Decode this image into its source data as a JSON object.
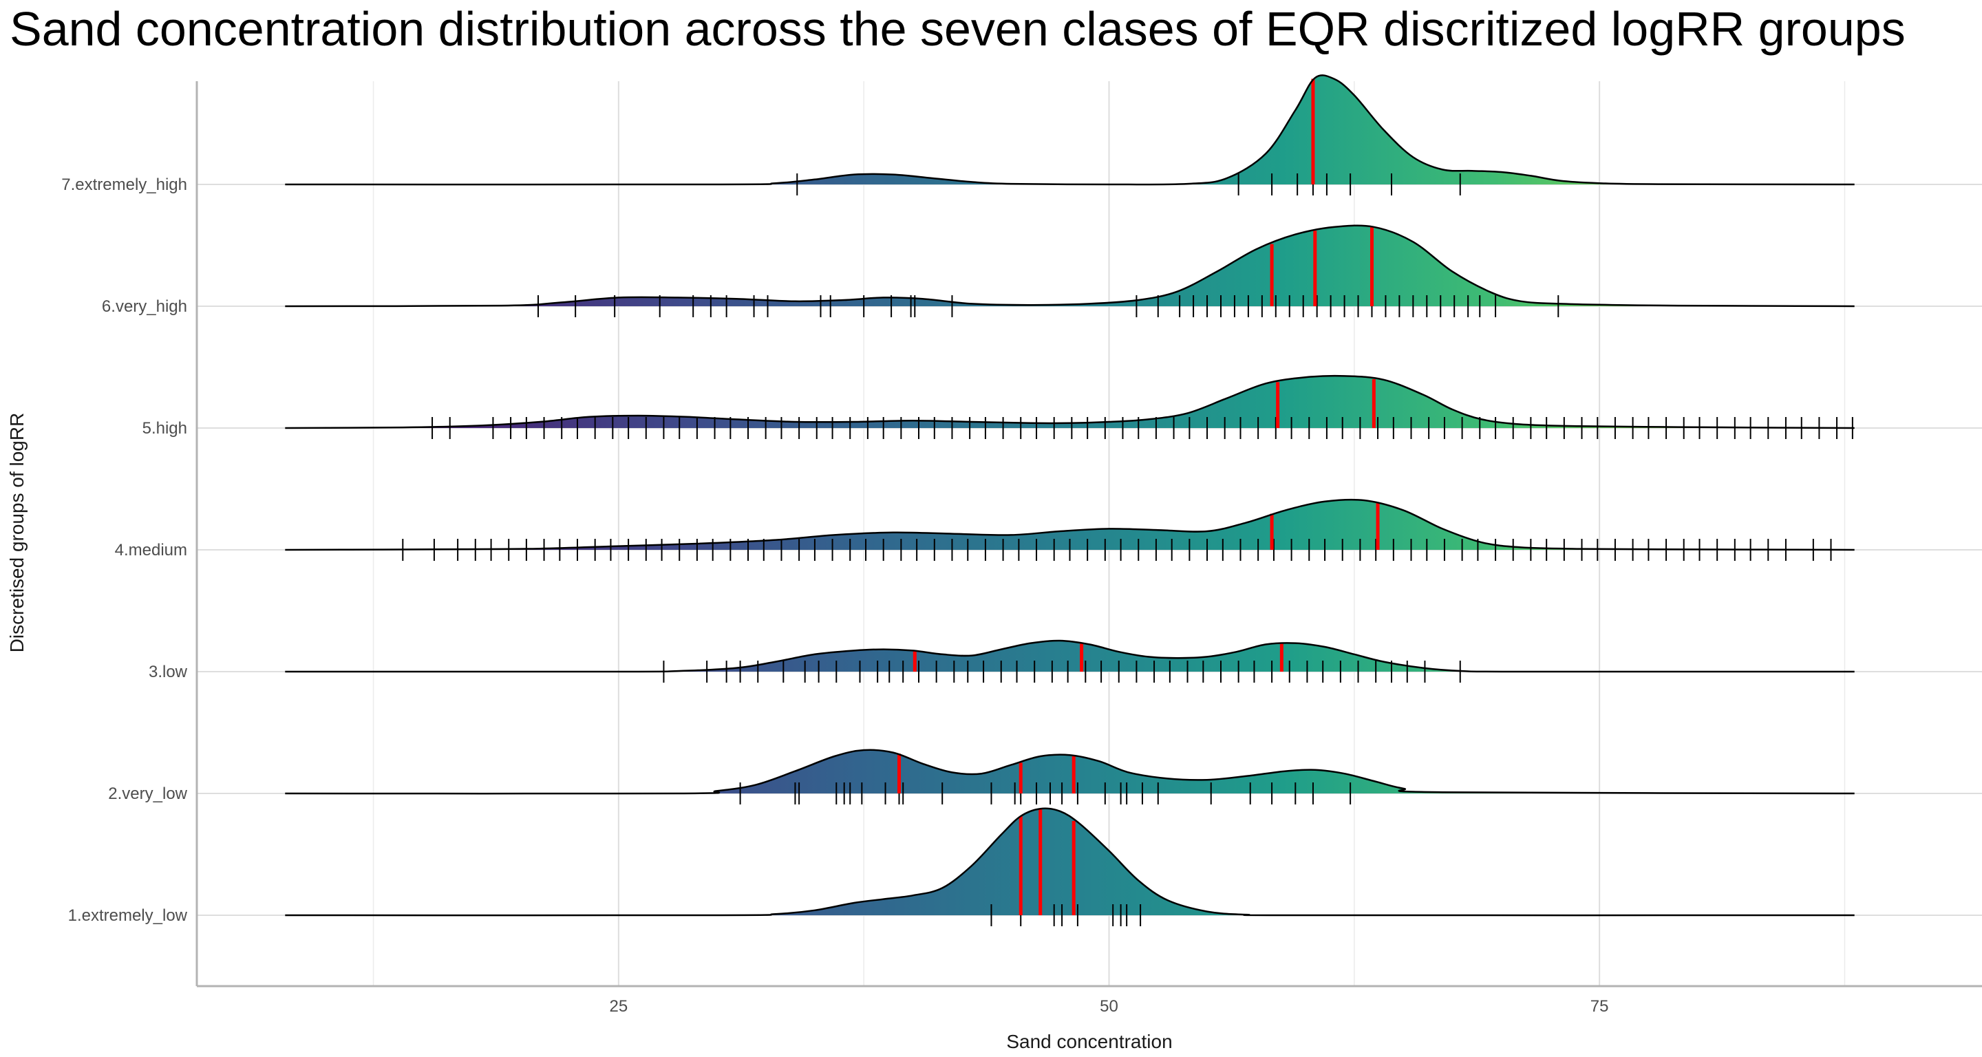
{
  "chart_data": {
    "type": "ridgeline",
    "title": "Sand concentration distribution across the seven clases of EQR discritized logRR groups",
    "xlabel": "Sand concentration",
    "ylabel": "Discretised groups of logRR",
    "xlim": [
      3.5,
      94.5
    ],
    "x_ticks": [
      25,
      50,
      75
    ],
    "x_tick_labels": [
      "25",
      "50",
      "75"
    ],
    "grid": true,
    "fill_palette": "viridis",
    "quantile_line_color": "#ff0000",
    "categories": [
      "1.extremely_low",
      "2.very_low",
      "3.low",
      "4.medium",
      "5.high",
      "6.very_high",
      "7.extremely_high"
    ],
    "series": [
      {
        "name": "1.extremely_low",
        "density_curve": {
          "x": [
            8,
            30,
            33,
            35,
            37,
            38.5,
            40,
            41.5,
            43,
            44.5,
            45.5,
            46.5,
            47.5,
            48.5,
            50,
            51.5,
            53,
            55,
            57,
            60,
            88
          ],
          "y": [
            0,
            0,
            0.01,
            0.04,
            0.1,
            0.13,
            0.16,
            0.22,
            0.4,
            0.65,
            0.8,
            0.86,
            0.84,
            0.74,
            0.52,
            0.28,
            0.12,
            0.03,
            0.005,
            0,
            0
          ]
        },
        "quantile_lines": [
          45.5,
          46.5,
          48.2
        ],
        "rug": [
          44,
          45.5,
          47.2,
          47.6,
          48.4,
          50.2,
          50.6,
          50.9,
          51.6
        ]
      },
      {
        "name": "2.very_low",
        "density_curve": {
          "x": [
            8,
            28,
            30,
            32,
            34,
            36,
            37.5,
            39,
            40.5,
            42,
            43.5,
            45,
            46.5,
            48,
            49.5,
            51,
            53,
            55,
            57,
            59,
            60.5,
            62,
            63.5,
            65,
            67,
            88
          ],
          "y": [
            0,
            0,
            0.02,
            0.07,
            0.18,
            0.3,
            0.35,
            0.33,
            0.24,
            0.17,
            0.16,
            0.23,
            0.3,
            0.31,
            0.26,
            0.17,
            0.12,
            0.11,
            0.14,
            0.18,
            0.19,
            0.16,
            0.1,
            0.04,
            0.01,
            0
          ]
        },
        "quantile_lines": [
          39.3,
          45.5,
          48.2
        ],
        "rug": [
          31.2,
          34,
          34.2,
          36.1,
          36.5,
          36.8,
          37.4,
          38.6,
          39.3,
          39.5,
          41.5,
          44,
          45.2,
          45.5,
          46.3,
          47,
          47.6,
          48.4,
          49.8,
          50.6,
          50.9,
          51.7,
          52.5,
          55.2,
          57.2,
          58.3,
          59.5,
          60.4,
          62.3
        ]
      },
      {
        "name": "3.low",
        "density_curve": {
          "x": [
            8,
            25,
            28,
            31,
            33,
            35,
            37,
            38.5,
            40,
            41.5,
            43,
            44.5,
            46,
            47.5,
            49,
            50.5,
            52,
            53.5,
            55,
            56.5,
            58,
            59.5,
            61,
            62.5,
            64,
            66,
            68,
            71,
            88
          ],
          "y": [
            0,
            0,
            0.005,
            0.03,
            0.08,
            0.14,
            0.17,
            0.18,
            0.17,
            0.14,
            0.13,
            0.18,
            0.23,
            0.25,
            0.22,
            0.16,
            0.12,
            0.11,
            0.12,
            0.16,
            0.22,
            0.23,
            0.2,
            0.14,
            0.08,
            0.03,
            0.005,
            0,
            0
          ]
        },
        "quantile_lines": [
          40.1,
          48.6,
          58.8
        ],
        "rug": [
          27.3,
          29.5,
          30.5,
          31.2,
          32.1,
          33.4,
          34.5,
          35.2,
          36.1,
          37.3,
          38.2,
          38.8,
          39.5,
          40.3,
          41.2,
          42.1,
          42.8,
          43.6,
          44.5,
          45.3,
          46.2,
          47.1,
          47.9,
          48.8,
          49.6,
          50.5,
          51.4,
          52.3,
          53.1,
          54,
          54.8,
          55.7,
          56.6,
          57.4,
          58.3,
          59.2,
          60.1,
          60.9,
          61.8,
          62.7,
          63.6,
          64.4,
          65.2,
          66.1,
          67.9
        ]
      },
      {
        "name": "4.medium",
        "density_curve": {
          "x": [
            8,
            13,
            17,
            21,
            25,
            29,
            33,
            36,
            39,
            42,
            45,
            47.5,
            50,
            52.5,
            55,
            57,
            59,
            61,
            63,
            65,
            67,
            69,
            71,
            74,
            78,
            83,
            88
          ],
          "y": [
            0,
            0.002,
            0.005,
            0.01,
            0.03,
            0.05,
            0.08,
            0.12,
            0.14,
            0.13,
            0.12,
            0.15,
            0.17,
            0.16,
            0.15,
            0.22,
            0.32,
            0.39,
            0.4,
            0.32,
            0.17,
            0.06,
            0.02,
            0.008,
            0.004,
            0.002,
            0
          ]
        },
        "quantile_lines": [
          58.3,
          63.7
        ],
        "rug": [
          14,
          15.6,
          16.8,
          17.7,
          18.5,
          19.4,
          20.3,
          21.2,
          22,
          22.9,
          23.8,
          24.6,
          25.5,
          26.4,
          27.2,
          28.1,
          29,
          29.8,
          30.7,
          31.6,
          32.4,
          33.3,
          34.2,
          35,
          35.9,
          36.8,
          37.6,
          38.5,
          39.4,
          40.2,
          41.1,
          42,
          42.8,
          43.7,
          44.6,
          45.4,
          46.3,
          47.2,
          48,
          48.9,
          49.8,
          50.6,
          51.5,
          52.4,
          53.2,
          54.1,
          55,
          55.8,
          56.7,
          57.6,
          58.4,
          59.3,
          60.2,
          61,
          61.9,
          62.8,
          63.6,
          64.5,
          65.4,
          66.2,
          67.1,
          68,
          68.8,
          69.7,
          70.6,
          71.5,
          72.3,
          73.2,
          74.1,
          74.9,
          75.8,
          76.7,
          77.5,
          78.4,
          79.3,
          80.1,
          81,
          81.9,
          82.7,
          83.6,
          84.5,
          85.9,
          86.8
        ]
      },
      {
        "name": "5.high",
        "density_curve": {
          "x": [
            8,
            14,
            18,
            21,
            23.5,
            26,
            28.5,
            31,
            34,
            37,
            40,
            43,
            46,
            48,
            50,
            52,
            54,
            56,
            58,
            60,
            62,
            64,
            66,
            67.5,
            69,
            71,
            74,
            79,
            84,
            88
          ],
          "y": [
            0,
            0.005,
            0.02,
            0.05,
            0.09,
            0.1,
            0.09,
            0.07,
            0.05,
            0.05,
            0.06,
            0.05,
            0.04,
            0.04,
            0.05,
            0.07,
            0.12,
            0.24,
            0.36,
            0.41,
            0.42,
            0.39,
            0.27,
            0.15,
            0.07,
            0.03,
            0.015,
            0.008,
            0.003,
            0
          ]
        },
        "quantile_lines": [
          58.6,
          63.5
        ],
        "rug": [
          15.5,
          16.4,
          18.6,
          19.5,
          20.3,
          21.2,
          22.1,
          22.9,
          23.8,
          24.7,
          25.5,
          26.4,
          27.3,
          28.1,
          29,
          29.9,
          30.7,
          31.6,
          32.5,
          33.3,
          34.2,
          35.1,
          35.9,
          36.8,
          37.7,
          38.5,
          39.4,
          40.3,
          41.1,
          42,
          42.9,
          43.7,
          44.6,
          45.5,
          46.3,
          47.2,
          48.1,
          48.9,
          49.8,
          50.7,
          51.5,
          52.4,
          53.3,
          54.1,
          55,
          55.9,
          56.7,
          57.6,
          58.5,
          59.3,
          60.2,
          61.1,
          61.9,
          62.8,
          63.7,
          64.5,
          65.4,
          66.3,
          67.1,
          68,
          68.9,
          69.7,
          70.6,
          71.5,
          72.3,
          73.2,
          74.1,
          74.9,
          75.8,
          76.7,
          77.5,
          78.4,
          79.3,
          80.1,
          81,
          81.9,
          82.7,
          83.6,
          84.5,
          85.3,
          86.2,
          87.1,
          87.9
        ]
      },
      {
        "name": "6.very_high",
        "density_curve": {
          "x": [
            8,
            19,
            22,
            25,
            28,
            31,
            34,
            36.5,
            38.5,
            40.5,
            43,
            46,
            49,
            51.5,
            53.5,
            55.5,
            57.5,
            59.5,
            61.5,
            63.5,
            65.5,
            67.5,
            69.5,
            71,
            73,
            76,
            79,
            84,
            88
          ],
          "y": [
            0,
            0.005,
            0.03,
            0.07,
            0.07,
            0.06,
            0.04,
            0.05,
            0.07,
            0.06,
            0.02,
            0.01,
            0.02,
            0.05,
            0.12,
            0.28,
            0.46,
            0.58,
            0.64,
            0.64,
            0.52,
            0.28,
            0.11,
            0.04,
            0.02,
            0.01,
            0.005,
            0.002,
            0
          ]
        },
        "quantile_lines": [
          58.3,
          60.5,
          63.4
        ],
        "rug": [
          20.9,
          22.8,
          24.8,
          27.1,
          28.8,
          29.7,
          30.5,
          31.9,
          32.6,
          35.3,
          35.8,
          37.5,
          38.9,
          39.9,
          40.1,
          42,
          51.4,
          52.5,
          53.6,
          54.3,
          55,
          55.7,
          56.4,
          57.1,
          57.8,
          58.5,
          59.2,
          59.9,
          60.6,
          61.3,
          62,
          62.7,
          63.4,
          64.1,
          64.8,
          65.5,
          66.2,
          66.9,
          67.6,
          68.3,
          68.9,
          69.7,
          72.9
        ]
      },
      {
        "name": "7.extremely_high",
        "density_curve": {
          "x": [
            8,
            30,
            33,
            35,
            37,
            39,
            41,
            43,
            45,
            50,
            54,
            56,
            58,
            59.5,
            60.5,
            61.5,
            62.5,
            64,
            65.5,
            67,
            68.5,
            70,
            71.5,
            73,
            75,
            78,
            88
          ],
          "y": [
            0,
            0,
            0.01,
            0.04,
            0.08,
            0.08,
            0.05,
            0.02,
            0.005,
            0,
            0.005,
            0.05,
            0.25,
            0.6,
            0.86,
            0.85,
            0.72,
            0.44,
            0.22,
            0.12,
            0.11,
            0.1,
            0.07,
            0.03,
            0.01,
            0.002,
            0
          ]
        },
        "quantile_lines": [
          60.4
        ],
        "rug": [
          34.1,
          56.6,
          58.3,
          59.6,
          60.4,
          61.1,
          62.3,
          64.4,
          67.9
        ]
      }
    ]
  }
}
